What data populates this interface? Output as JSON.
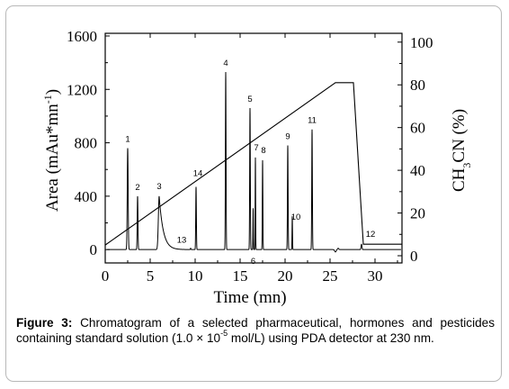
{
  "chart_data": {
    "type": "line",
    "xlabel": "Time (mn)",
    "ylabel_left": "Area (mAu*mn-1)",
    "ylabel_right": "CH3CN (%)",
    "xlim": [
      0,
      33
    ],
    "ylim_left": [
      -100,
      1620
    ],
    "ylim_right": [
      -3.375,
      104.125
    ],
    "x_ticks": [
      0,
      5,
      10,
      15,
      20,
      25,
      30
    ],
    "y_left_ticks": [
      0,
      400,
      800,
      1200,
      1600
    ],
    "y_right_ticks": [
      0,
      20,
      40,
      60,
      80,
      100
    ],
    "grid": false,
    "series": [
      {
        "axis": "left",
        "peaks": [
          {
            "label": "1",
            "time": 2.5,
            "height": 760,
            "width": 0.1
          },
          {
            "label": "2",
            "time": 3.6,
            "height": 400,
            "width": 0.08
          },
          {
            "label": "3",
            "time": 6.0,
            "height": 400,
            "width": 0.18,
            "tail": true
          },
          {
            "label": "13",
            "time": 9.5,
            "height": 10,
            "width": 0.06
          },
          {
            "label": "14",
            "time": 10.1,
            "height": 470,
            "width": 0.07
          },
          {
            "label": "4",
            "time": 13.4,
            "height": 1330,
            "width": 0.07
          },
          {
            "label": "5",
            "time": 16.1,
            "height": 1060,
            "width": 0.07
          },
          {
            "label": "6",
            "time": 16.45,
            "height": 310,
            "width": 0.05
          },
          {
            "label": "7",
            "time": 16.7,
            "height": 690,
            "width": 0.05
          },
          {
            "label": "8",
            "time": 17.5,
            "height": 670,
            "width": 0.06
          },
          {
            "label": "9",
            "time": 20.3,
            "height": 780,
            "width": 0.07
          },
          {
            "label": "10",
            "time": 20.8,
            "height": 250,
            "width": 0.05
          },
          {
            "label": "11",
            "time": 23.0,
            "height": 900,
            "width": 0.07
          },
          {
            "label": "12",
            "time": 28.5,
            "height": 40,
            "width": 0.1
          }
        ]
      },
      {
        "axis": "right",
        "points": [
          [
            0,
            5
          ],
          [
            25.6,
            81
          ],
          [
            27.6,
            81
          ],
          [
            28.7,
            5.4
          ],
          [
            33,
            5.4
          ]
        ]
      }
    ]
  },
  "labels": {
    "xlabel": "Time (mn)",
    "ylabel_left_main": "Area (mAu*mn",
    "ylabel_left_sup": "-1",
    "ylabel_left_end": ")",
    "ylabel_right_pre": "CH",
    "ylabel_right_sub": "3",
    "ylabel_right_post": "CN (%)"
  },
  "caption": {
    "lead": "Figure 3:",
    "text1": " Chromatogram of a selected pharmaceutical, hormones and pesticides containing standard solution (1.0 × 10",
    "sup": "-5",
    "text2": " mol/L) using PDA detector at 230 nm."
  }
}
